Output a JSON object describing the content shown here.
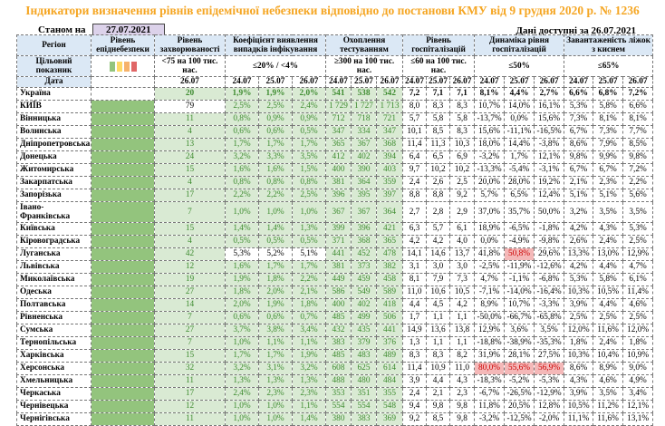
{
  "title": "Індикатори визначення рівнів епідемічної небезпеки відповідно до постанови КМУ від 9 грудня 2020 р. № 1236",
  "as_of_label": "Станом на",
  "as_of_date": "27.07.2021",
  "available": "Дані доступні за 26.07.2021",
  "headers": {
    "region": "Регіон",
    "level": "Рівень епіднебезпеки",
    "incidence": "Рівень захворюваності",
    "detection": "Коефіцієнт виявлення випадків інфікування",
    "testing": "Охоплення тестуванням",
    "hosp": "Рівень госпіталізацій",
    "dynamics": "Динаміка рівня госпіталізацій",
    "beds": "Завантаженість ліжок з киснем"
  },
  "targets": {
    "label": "Цільовий показник",
    "incidence": "<75 на 100 тис. нас.",
    "detection": "≤20% / <4%",
    "testing": "≥300 на 100 тис. нас.",
    "hosp": "≤60 на 100 тис. нас.",
    "dynamics": "≤50%",
    "beds": "≤65%"
  },
  "level_colors": [
    "#93c47d",
    "#ffd966",
    "#f6b26b",
    "#e06666"
  ],
  "date_label": "Дата",
  "dates": [
    "26.07",
    "24.07",
    "25.07",
    "26.07",
    "24.07",
    "25.07",
    "26.07",
    "24.07",
    "25.07",
    "26.07",
    "24.07",
    "25.07",
    "26.07",
    "24.07",
    "25.07",
    "26.07"
  ],
  "rows": [
    [
      "Україна",
      "20",
      "1,9%",
      "1,9%",
      "2,0%",
      "541",
      "538",
      "542",
      "7,2",
      "7,1",
      "7,1",
      "8,1%",
      "4,4%",
      "2,7%",
      "6,6%",
      "6,8%",
      "7,2%"
    ],
    [
      "КИЇВ",
      "79",
      "2,5%",
      "2,5%",
      "2,4%",
      "1 729",
      "1 727",
      "1 713",
      "8,0",
      "8,3",
      "8,3",
      "10,7%",
      "14,0%",
      "16,1%",
      "5,3%",
      "5,8%",
      "6,6%"
    ],
    [
      "Вінницька",
      "11",
      "0,8%",
      "0,9%",
      "0,9%",
      "712",
      "718",
      "721",
      "5,7",
      "5,8",
      "5,8",
      "-13,7%",
      "0,0%",
      "15,6%",
      "7,3%",
      "8,1%",
      "8,1%"
    ],
    [
      "Волинська",
      "4",
      "0,6%",
      "0,6%",
      "0,5%",
      "347",
      "334",
      "347",
      "10,1",
      "8,5",
      "8,3",
      "15,6%",
      "-11,1%",
      "-16,5%",
      "6,7%",
      "7,3%",
      "7,7%"
    ],
    [
      "Дніпропетровська",
      "13",
      "1,7%",
      "1,7%",
      "1,7%",
      "365",
      "367",
      "368",
      "11,4",
      "11,3",
      "10,3",
      "18,0%",
      "14,4%",
      "-3,8%",
      "8,6%",
      "7,9%",
      "8,5%"
    ],
    [
      "Донецька",
      "24",
      "3,2%",
      "3,3%",
      "3,5%",
      "412",
      "402",
      "394",
      "6,4",
      "6,5",
      "6,9",
      "-3,2%",
      "1,7%",
      "12,1%",
      "9,8%",
      "9,9%",
      "9,8%"
    ],
    [
      "Житомирська",
      "15",
      "1,6%",
      "1,6%",
      "1,5%",
      "400",
      "390",
      "403",
      "9,7",
      "10,2",
      "10,2",
      "-13,3%",
      "-5,4%",
      "-3,1%",
      "6,7%",
      "6,7%",
      "7,2%"
    ],
    [
      "Закарпатська",
      "4",
      "0,8%",
      "0,8%",
      "0,8%",
      "381",
      "364",
      "359",
      "2,4",
      "2,6",
      "2,5",
      "20,0%",
      "28,0%",
      "19,2%",
      "2,1%",
      "2,3%",
      "2,2%"
    ],
    [
      "Запорізька",
      "17",
      "2,2%",
      "2,2%",
      "2,5%",
      "396",
      "395",
      "397",
      "8,8",
      "8,8",
      "9,2",
      "5,7%",
      "6,5%",
      "12,4%",
      "5,1%",
      "5,1%",
      "5,6%"
    ],
    [
      "Івано-Франківська",
      "7",
      "1,0%",
      "1,0%",
      "1,0%",
      "367",
      "367",
      "364",
      "2,7",
      "2,8",
      "2,9",
      "37,0%",
      "35,7%",
      "50,0%",
      "3,2%",
      "3,5%",
      "3,5%"
    ],
    [
      "Київська",
      "15",
      "1,4%",
      "1,4%",
      "1,3%",
      "399",
      "396",
      "421",
      "6,3",
      "5,7",
      "6,1",
      "18,9%",
      "-6,5%",
      "-1,8%",
      "4,2%",
      "4,3%",
      "5,3%"
    ],
    [
      "Кіровоградська",
      "4",
      "0,5%",
      "0,5%",
      "0,5%",
      "371",
      "368",
      "365",
      "4,2",
      "4,2",
      "4,0",
      "0,0%",
      "-4,9%",
      "-9,8%",
      "2,6%",
      "2,4%",
      "2,5%"
    ],
    [
      "Луганська",
      "42",
      "5,3%",
      "5,2%",
      "5,1%",
      "441",
      "452",
      "478",
      "14,1",
      "14,6",
      "13,7",
      "41,8%",
      "50,8%",
      "29,6%",
      "13,3%",
      "13,0%",
      "12,9%"
    ],
    [
      "Львівська",
      "12",
      "1,6%",
      "1,7%",
      "1,7%",
      "381",
      "373",
      "382",
      "3,1",
      "3,0",
      "3,0",
      "-2,5%",
      "-11,9%",
      "-12,6%",
      "4,2%",
      "4,4%",
      "4,7%"
    ],
    [
      "Миколаївська",
      "19",
      "1,9%",
      "1,8%",
      "2,2%",
      "449",
      "459",
      "458",
      "8,1",
      "7,9",
      "7,3",
      "4,7%",
      "-1,1%",
      "-6,8%",
      "5,3%",
      "5,8%",
      "6,1%"
    ],
    [
      "Одеська",
      "27",
      "1,8%",
      "2,0%",
      "2,1%",
      "586",
      "549",
      "589",
      "11,0",
      "10,6",
      "10,5",
      "-7,1%",
      "-14,0%",
      "-16,4%",
      "10,3%",
      "10,5%",
      "11,4%"
    ],
    [
      "Полтавська",
      "14",
      "2,0%",
      "1,9%",
      "1,8%",
      "400",
      "402",
      "418",
      "4,4",
      "4,5",
      "4,2",
      "8,9%",
      "10,7%",
      "-3,3%",
      "3,9%",
      "4,4%",
      "4,6%"
    ],
    [
      "Рівненська",
      "7",
      "0,6%",
      "0,6%",
      "0,7%",
      "485",
      "499",
      "506",
      "1,7",
      "1,1",
      "1,1",
      "-50,0%",
      "-66,7%",
      "-65,8%",
      "2,5%",
      "2,5%",
      "2,5%"
    ],
    [
      "Сумська",
      "27",
      "3,7%",
      "3,8%",
      "3,4%",
      "432",
      "435",
      "441",
      "14,9",
      "13,6",
      "13,8",
      "12,9%",
      "3,6%",
      "3,5%",
      "12,0%",
      "11,6%",
      "12,0%"
    ],
    [
      "Тернопільська",
      "7",
      "1,0%",
      "1,1%",
      "1,1%",
      "383",
      "379",
      "376",
      "1,3",
      "1,1",
      "1,1",
      "-18,8%",
      "-38,9%",
      "-35,3%",
      "1,8%",
      "2,4%",
      "1,8%"
    ],
    [
      "Харківська",
      "15",
      "1,7%",
      "1,7%",
      "1,9%",
      "485",
      "483",
      "489",
      "8,3",
      "8,3",
      "8,2",
      "31,9%",
      "28,1%",
      "27,5%",
      "10,3%",
      "10,4%",
      "10,9%"
    ],
    [
      "Херсонська",
      "32",
      "3,2%",
      "3,1%",
      "3,2%",
      "608",
      "625",
      "614",
      "11,4",
      "10,9",
      "11,0",
      "80,0%",
      "55,6%",
      "56,9%",
      "8,6%",
      "8,9%",
      "9,0%"
    ],
    [
      "Хмельницька",
      "11",
      "1,3%",
      "1,3%",
      "1,3%",
      "488",
      "480",
      "484",
      "3,9",
      "4,4",
      "4,3",
      "-18,3%",
      "-5,2%",
      "-5,3%",
      "4,3%",
      "4,6%",
      "4,9%"
    ],
    [
      "Черкаська",
      "17",
      "2,4%",
      "2,3%",
      "2,3%",
      "353",
      "351",
      "355",
      "2,4",
      "2,1",
      "2,3",
      "-6,7%",
      "-26,5%",
      "-12,9%",
      "3,9%",
      "3,5%",
      "3,4%"
    ],
    [
      "Чернівецька",
      "12",
      "1,0%",
      "1,0%",
      "1,1%",
      "554",
      "554",
      "548",
      "9,4",
      "9,8",
      "9,8",
      "11,8%",
      "20,5%",
      "12,8%",
      "10,5%",
      "11,2%",
      "12,1%"
    ],
    [
      "Чернігівська",
      "11",
      "1,0%",
      "1,0%",
      "1,4%",
      "380",
      "383",
      "369",
      "9,2",
      "8,5",
      "9,8",
      "-3,2%",
      "-12,5%",
      "-2,0%",
      "11,1%",
      "11,6%",
      "13,1%"
    ]
  ],
  "highlight_colors": {
    "level_green": "#93c47d",
    "ok_cell": "#d9ead3",
    "alert_cell": "#f4b8b8",
    "title": "#f5a623"
  }
}
